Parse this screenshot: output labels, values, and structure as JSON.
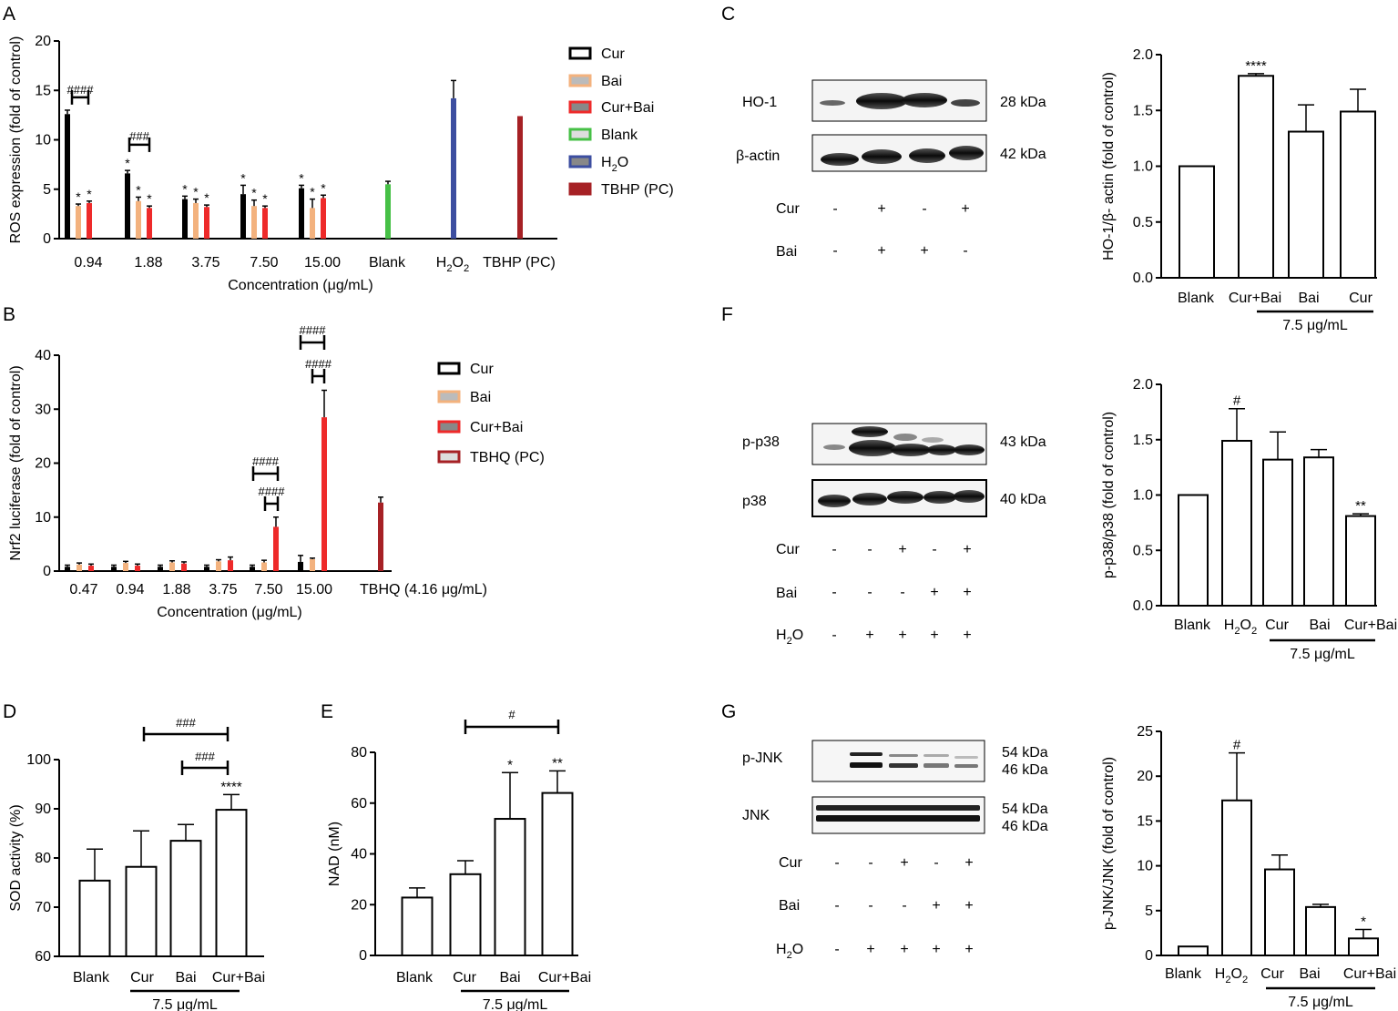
{
  "colors": {
    "cur": "#000000",
    "bai": "#f3b27e",
    "cur_bai": "#ee2a2a",
    "blank": "#46c046",
    "h2o2": "#3c4ea0",
    "tbhp": "#a62125",
    "tbhq": "#a62125"
  },
  "chart_data": [
    {
      "panel": "A",
      "type": "bar",
      "ylabel": "ROS expression (fold of control)",
      "xlabel": "Concentration (μg/mL)",
      "ylim": [
        0,
        20
      ],
      "yticks": [
        "0",
        "5",
        "10",
        "15",
        "20"
      ],
      "categories": [
        "0.94",
        "1.88",
        "3.75",
        "7.50",
        "15.00",
        "Blank",
        "H2O2",
        "TBHP (PC)"
      ],
      "series": [
        {
          "name": "Cur",
          "values": [
            12.6,
            6.6,
            4.0,
            4.5,
            5.1,
            null,
            null,
            null
          ],
          "errors": [
            0.4,
            0.3,
            0.3,
            0.9,
            0.3,
            0,
            0,
            0
          ],
          "marks": [
            "",
            "*",
            "*",
            "*",
            "*",
            "",
            "",
            ""
          ]
        },
        {
          "name": "Bai",
          "values": [
            3.3,
            3.8,
            3.6,
            3.3,
            3.1,
            null,
            null,
            null
          ],
          "errors": [
            0.2,
            0.4,
            0.4,
            0.6,
            0.9,
            0,
            0,
            0
          ],
          "marks": [
            "*",
            "*",
            "*",
            "*",
            "*",
            "",
            "",
            ""
          ]
        },
        {
          "name": "Cur+Bai",
          "values": [
            3.6,
            3.1,
            3.2,
            3.1,
            4.1,
            null,
            null,
            null
          ],
          "errors": [
            0.2,
            0.2,
            0.2,
            0.2,
            0.3,
            0,
            0,
            0
          ],
          "marks": [
            "*",
            "*",
            "*",
            "*",
            "*",
            "",
            "",
            ""
          ]
        },
        {
          "name": "Blank",
          "values": [
            null,
            null,
            null,
            null,
            null,
            5.5,
            null,
            null
          ],
          "errors": [
            0,
            0,
            0,
            0,
            0,
            0.3,
            0,
            0
          ],
          "marks": [
            "",
            "",
            "",
            "",
            "",
            "",
            "",
            ""
          ]
        },
        {
          "name": "H2O2",
          "values": [
            null,
            null,
            null,
            null,
            null,
            null,
            14.2,
            null
          ],
          "errors": [
            0,
            0,
            0,
            0,
            0,
            0,
            1.8,
            0
          ],
          "marks": [
            "",
            "",
            "",
            "",
            "",
            "",
            "",
            ""
          ]
        },
        {
          "name": "TBHP (PC)",
          "values": [
            null,
            null,
            null,
            null,
            null,
            null,
            null,
            12.4
          ],
          "errors": [
            0,
            0,
            0,
            0,
            0,
            0,
            0,
            0
          ],
          "marks": [
            "",
            "",
            "",
            "",
            "",
            "",
            "",
            ""
          ]
        }
      ],
      "annotations": [
        "####",
        "###"
      ]
    },
    {
      "panel": "B",
      "type": "bar",
      "ylabel": "Nrf2 luciferase (fold of control)",
      "xlabel": "Concentration (μg/mL)",
      "ylim": [
        0,
        40
      ],
      "yticks": [
        "0",
        "10",
        "20",
        "30",
        "40"
      ],
      "categories": [
        "0.47",
        "0.94",
        "1.88",
        "3.75",
        "7.50",
        "15.00",
        "TBHQ (4.16 μg/mL)"
      ],
      "series": [
        {
          "name": "Cur",
          "values": [
            0.8,
            0.8,
            0.8,
            0.8,
            0.8,
            1.7,
            null
          ],
          "errors": [
            0.3,
            0.3,
            0.3,
            0.3,
            0.3,
            1.2,
            0
          ]
        },
        {
          "name": "Bai",
          "values": [
            1.2,
            1.5,
            1.6,
            1.8,
            1.6,
            2.2,
            null
          ],
          "errors": [
            0.3,
            0.3,
            0.3,
            0.3,
            0.4,
            0.2,
            0
          ]
        },
        {
          "name": "Cur+Bai",
          "values": [
            1.0,
            1.0,
            1.4,
            2.0,
            8.2,
            28.5,
            null
          ],
          "errors": [
            0.3,
            0.3,
            0.3,
            0.6,
            1.8,
            5.0,
            0
          ]
        },
        {
          "name": "TBHQ (PC)",
          "values": [
            null,
            null,
            null,
            null,
            null,
            null,
            12.7
          ],
          "errors": [
            0,
            0,
            0,
            0,
            0,
            0,
            1.0
          ]
        }
      ],
      "annotations": [
        "####",
        "####",
        "####",
        "####"
      ]
    },
    {
      "panel": "C",
      "type": "bar",
      "ylabel": "HO-1/β- actin (fold of control)",
      "ylim": [
        0,
        2.0
      ],
      "yticks": [
        "0.0",
        "0.5",
        "1.0",
        "1.5",
        "2.0"
      ],
      "categories": [
        "Blank",
        "Cur+Bai",
        "Bai",
        "Cur"
      ],
      "values": [
        1.0,
        1.81,
        1.31,
        1.49
      ],
      "errors": [
        0,
        0.02,
        0.24,
        0.2
      ],
      "marks": [
        "",
        "****",
        "",
        ""
      ],
      "group_label": "7.5 μg/mL"
    },
    {
      "panel": "F",
      "type": "bar",
      "ylabel": "p-p38/p38 (fold of control)",
      "ylim": [
        0,
        2.0
      ],
      "yticks": [
        "0.0",
        "0.5",
        "1.0",
        "1.5",
        "2.0"
      ],
      "categories": [
        "Blank",
        "H2O2",
        "Cur",
        "Bai",
        "Cur+Bai"
      ],
      "values": [
        1.0,
        1.49,
        1.32,
        1.34,
        0.81
      ],
      "errors": [
        0,
        0.29,
        0.25,
        0.07,
        0.02
      ],
      "marks": [
        "",
        "#",
        "",
        "",
        "**"
      ],
      "group_label": "7.5 μg/mL"
    },
    {
      "panel": "G",
      "type": "bar",
      "ylabel": "p-JNK/JNK (fold of control)",
      "ylim": [
        0,
        25
      ],
      "yticks": [
        "0",
        "5",
        "10",
        "15",
        "20",
        "25"
      ],
      "categories": [
        "Blank",
        "H2O2",
        "Cur",
        "Bai",
        "Cur+Bai"
      ],
      "values": [
        1.0,
        17.3,
        9.6,
        5.4,
        1.9
      ],
      "errors": [
        0,
        5.3,
        1.6,
        0.3,
        1.0
      ],
      "marks": [
        "",
        "#",
        "",
        "",
        "*"
      ],
      "group_label": "7.5 μg/mL"
    },
    {
      "panel": "D",
      "type": "bar",
      "ylabel": "SOD activity (%)",
      "ylim": [
        60,
        100
      ],
      "yticks": [
        "60",
        "70",
        "80",
        "90",
        "100"
      ],
      "categories": [
        "Blank",
        "Cur",
        "Bai",
        "Cur+Bai"
      ],
      "values": [
        75.4,
        78.2,
        83.5,
        89.8
      ],
      "errors": [
        6.4,
        7.3,
        3.3,
        3.1
      ],
      "marks": [
        "",
        "",
        "",
        "****"
      ],
      "group_label": "7.5 μg/mL",
      "annotations": [
        "###",
        "###"
      ]
    },
    {
      "panel": "E",
      "type": "bar",
      "ylabel": "NAD (nM)",
      "ylim": [
        0,
        80
      ],
      "yticks": [
        "0",
        "20",
        "40",
        "60",
        "80"
      ],
      "categories": [
        "Blank",
        "Cur",
        "Bai",
        "Cur+Bai"
      ],
      "values": [
        22.8,
        32.0,
        53.8,
        64.0
      ],
      "errors": [
        3.8,
        5.3,
        18.2,
        8.7
      ],
      "marks": [
        "",
        "",
        "*",
        "**"
      ],
      "group_label": "7.5 μg/mL",
      "annotations": [
        "#"
      ]
    }
  ],
  "panels": {
    "A": "A",
    "B": "B",
    "C": "C",
    "D": "D",
    "E": "E",
    "F": "F",
    "G": "G"
  },
  "legendA": {
    "items": [
      "Cur",
      "Bai",
      "Cur+Bai",
      "Blank",
      "H",
      "TBHP (PC)"
    ],
    "h2o2_sub": "2",
    "h2o2_tail": "O"
  },
  "legendB": {
    "items": [
      "Cur",
      "Bai",
      "Cur+Bai",
      "TBHQ (PC)"
    ]
  },
  "blots": {
    "C": {
      "rows": [
        "HO-1",
        "β-actin"
      ],
      "kda": [
        "28 kDa",
        "42 kDa"
      ],
      "treat_labels": [
        "Cur",
        "Bai"
      ],
      "treat_signs": [
        [
          "-",
          "+",
          "-",
          "+"
        ],
        [
          "-",
          "+",
          "+",
          "-"
        ]
      ]
    },
    "F": {
      "rows": [
        "p-p38",
        "p38"
      ],
      "kda": [
        "43 kDa",
        "40 kDa"
      ],
      "treat_labels": [
        "Cur",
        "Bai",
        "H"
      ],
      "treat_sub": "2",
      "treat_tail": "O",
      "treat_signs": [
        [
          "-",
          "-",
          "+",
          "-",
          "+"
        ],
        [
          "-",
          "-",
          "-",
          "+",
          "+"
        ],
        [
          "-",
          "+",
          "+",
          "+",
          "+"
        ]
      ]
    },
    "G": {
      "rows": [
        "p-JNK",
        "JNK"
      ],
      "kda": [
        "54 kDa",
        "46 kDa",
        "54 kDa",
        "46 kDa"
      ],
      "treat_labels": [
        "Cur",
        "Bai",
        "H"
      ],
      "treat_sub": "2",
      "treat_tail": "O",
      "treat_signs": [
        [
          "-",
          "-",
          "+",
          "-",
          "+"
        ],
        [
          "-",
          "-",
          "-",
          "+",
          "+"
        ],
        [
          "-",
          "+",
          "+",
          "+",
          "+"
        ]
      ]
    }
  }
}
